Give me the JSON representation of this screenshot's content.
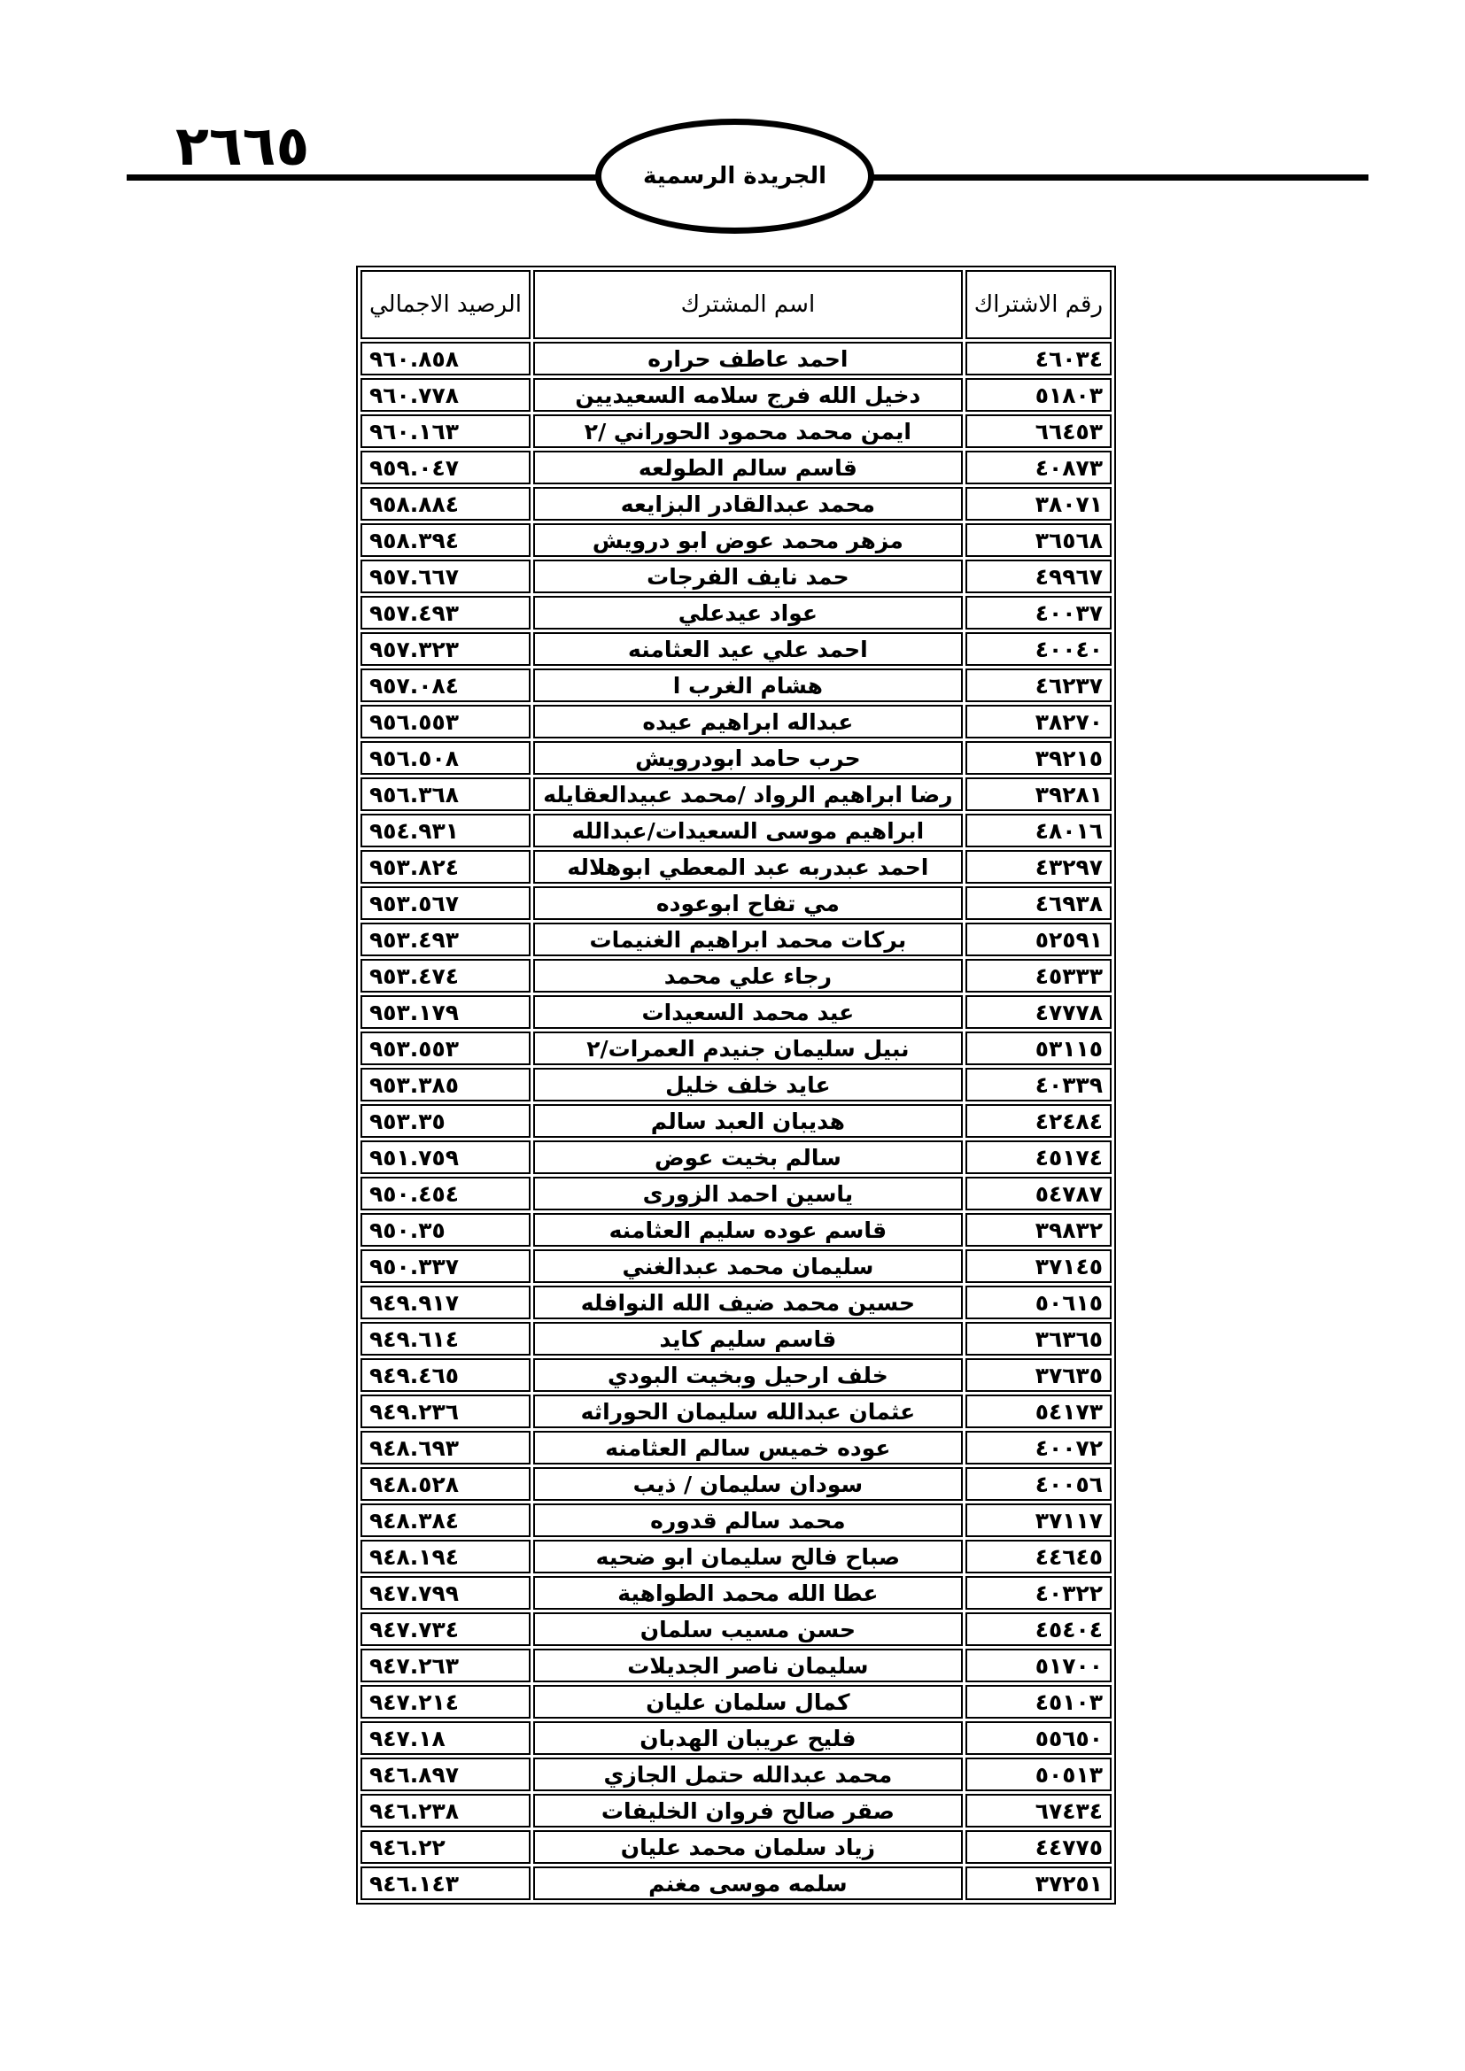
{
  "header": {
    "page_number": "٢٦٦٥",
    "publication": "الجريدة الرسمية"
  },
  "table": {
    "columns": [
      "رقم الاشتراك",
      "اسم المشترك",
      "الرصيد الاجمالي"
    ],
    "rows": [
      [
        "٤٦٠٣٤",
        "احمد عاطف  حراره",
        "٩٦٠.٨٥٨"
      ],
      [
        "٥١٨٠٣",
        "دخيل الله فرج سلامه السعيديين",
        "٩٦٠.٧٧٨"
      ],
      [
        "٦٦٤٥٣",
        "ايمن محمد محمود الحوراني /٢",
        "٩٦٠.١٦٣"
      ],
      [
        "٤٠٨٧٣",
        "قاسم سالم الطولعه",
        "٩٥٩.٠٤٧"
      ],
      [
        "٣٨٠٧١",
        "محمد عبدالقادر البزايعه",
        "٩٥٨.٨٨٤"
      ],
      [
        "٣٦٥٦٨",
        "مزهر محمد عوض ابو درويش",
        "٩٥٨.٣٩٤"
      ],
      [
        "٤٩٩٦٧",
        "حمد نايف الفرجات",
        "٩٥٧.٦٦٧"
      ],
      [
        "٤٠٠٣٧",
        "عواد عيدعلي",
        "٩٥٧.٤٩٣"
      ],
      [
        "٤٠٠٤٠",
        "احمد علي عيد العثامنه",
        "٩٥٧.٣٢٣"
      ],
      [
        "٤٦٢٣٧",
        "هشام الغرب ا",
        "٩٥٧.٠٨٤"
      ],
      [
        "٣٨٢٧٠",
        "عبداله ابراهيم عيده",
        "٩٥٦.٥٥٣"
      ],
      [
        "٣٩٢١٥",
        "حرب  حامد ابودرويش",
        "٩٥٦.٥٠٨"
      ],
      [
        "٣٩٢٨١",
        "رضا ابراهيم الرواد  /محمد عبيدالعقايله",
        "٩٥٦.٣٦٨"
      ],
      [
        "٤٨٠١٦",
        "ابراهيم موسى السعيدات/عبدالله",
        "٩٥٤.٩٣١"
      ],
      [
        "٤٣٢٩٧",
        "احمد عبدربه عبد المعطي ابوهلاله",
        "٩٥٣.٨٢٤"
      ],
      [
        "٤٦٩٣٨",
        "مي تفاح ابوعوده",
        "٩٥٣.٥٦٧"
      ],
      [
        "٥٢٥٩١",
        "بركات محمد ابراهيم الغنيمات",
        "٩٥٣.٤٩٣"
      ],
      [
        "٤٥٣٣٣",
        "رجاء علي محمد",
        "٩٥٣.٤٧٤"
      ],
      [
        "٤٧٧٧٨",
        "عيد محمد السعيدات",
        "٩٥٣.١٧٩"
      ],
      [
        "٥٣١١٥",
        "نبيل سليمان جنيدم العمرات/٢",
        "٩٥٣.٥٥٣"
      ],
      [
        "٤٠٣٣٩",
        "عايد خلف خليل",
        "٩٥٣.٣٨٥"
      ],
      [
        "٤٢٤٨٤",
        "هديبان العبد سالم",
        "٩٥٣.٣٥"
      ],
      [
        "٤٥١٧٤",
        "سالم بخيت عوض",
        "٩٥١.٧٥٩"
      ],
      [
        "٥٤٧٨٧",
        "ياسين احمد الزورى",
        "٩٥٠.٤٥٤"
      ],
      [
        "٣٩٨٣٢",
        "قاسم عوده سليم العثامنه",
        "٩٥٠.٣٥"
      ],
      [
        "٣٧١٤٥",
        "سليمان محمد عبدالغني",
        "٩٥٠.٣٣٧"
      ],
      [
        "٥٠٦١٥",
        "حسين محمد ضيف الله النوافله",
        "٩٤٩.٩١٧"
      ],
      [
        "٣٦٣٦٥",
        "قاسم سليم كايد",
        "٩٤٩.٦١٤"
      ],
      [
        "٣٧٦٣٥",
        "خلف  ارحيل وبخيت  البودي",
        "٩٤٩.٤٦٥"
      ],
      [
        "٥٤١٧٣",
        "عثمان عبدالله سليمان الحوراثه",
        "٩٤٩.٢٣٦"
      ],
      [
        "٤٠٠٧٢",
        "عوده خميس سالم العثامنه",
        "٩٤٨.٦٩٣"
      ],
      [
        "٤٠٠٥٦",
        "سودان سليمان  / ذيب",
        "٩٤٨.٥٢٨"
      ],
      [
        "٣٧١١٧",
        "محمد سالم قدوره",
        "٩٤٨.٣٨٤"
      ],
      [
        "٤٤٦٤٥",
        "صباح فالح سليمان ابو ضحيه",
        "٩٤٨.١٩٤"
      ],
      [
        "٤٠٣٢٢",
        "عطا الله محمد الطواهية",
        "٩٤٧.٧٩٩"
      ],
      [
        "٤٥٤٠٤",
        "حسن مسيب  سلمان",
        "٩٤٧.٧٣٤"
      ],
      [
        "٥١٧٠٠",
        "سليمان ناصر الجديلات",
        "٩٤٧.٢٦٣"
      ],
      [
        "٤٥١٠٣",
        "كمال سلمان عليان",
        "٩٤٧.٢١٤"
      ],
      [
        "٥٥٦٥٠",
        "فليح عريبان الهدبان",
        "٩٤٧.١٨"
      ],
      [
        "٥٠٥١٣",
        "محمد عبدالله حتمل الجازي",
        "٩٤٦.٨٩٧"
      ],
      [
        "٦٧٤٣٤",
        "صقر صالح فروان الخليفات",
        "٩٤٦.٢٣٨"
      ],
      [
        "٤٤٧٧٥",
        "زياد سلمان محمد عليان",
        "٩٤٦.٢٢"
      ],
      [
        "٣٧٢٥١",
        "سلمه موسى مغنم",
        "٩٤٦.١٤٣"
      ]
    ]
  }
}
